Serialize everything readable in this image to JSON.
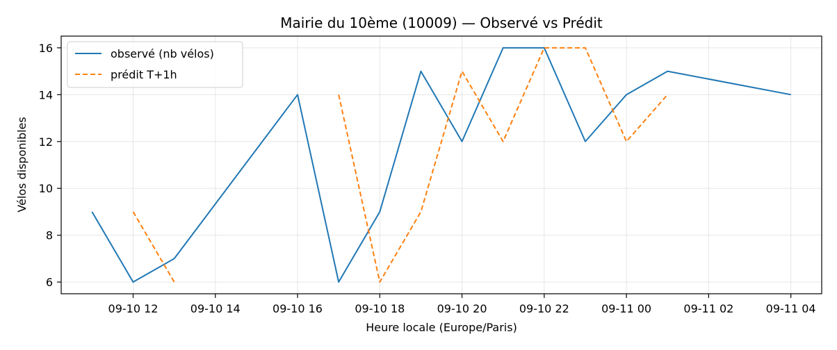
{
  "chart_data": {
    "type": "line",
    "title": "Mairie du 10ème (10009) — Observé vs Prédit",
    "xlabel": "Heure locale (Europe/Paris)",
    "ylabel": "Vélos disponibles",
    "xlim": [
      "2025-09-10 10:15",
      "2025-09-11 04:45"
    ],
    "ylim": [
      5.5,
      16.5
    ],
    "x_ticks": [
      "09-10 12",
      "09-10 14",
      "09-10 16",
      "09-10 18",
      "09-10 20",
      "09-10 22",
      "09-11 00",
      "09-11 02",
      "09-11 04"
    ],
    "y_ticks": [
      6,
      8,
      10,
      12,
      14,
      16
    ],
    "grid": true,
    "legend_position": "upper left",
    "series": [
      {
        "name": "observé (nb vélos)",
        "color": "#1f77b4",
        "style": "solid",
        "points": [
          {
            "x": "2025-09-10 11:00",
            "y": 9
          },
          {
            "x": "2025-09-10 12:00",
            "y": 6
          },
          {
            "x": "2025-09-10 13:00",
            "y": 7
          },
          {
            "x": "2025-09-10 16:00",
            "y": 14
          },
          {
            "x": "2025-09-10 17:00",
            "y": 6
          },
          {
            "x": "2025-09-10 18:00",
            "y": 9
          },
          {
            "x": "2025-09-10 19:00",
            "y": 15
          },
          {
            "x": "2025-09-10 20:00",
            "y": 12
          },
          {
            "x": "2025-09-10 21:00",
            "y": 16
          },
          {
            "x": "2025-09-10 22:00",
            "y": 16
          },
          {
            "x": "2025-09-10 23:00",
            "y": 12
          },
          {
            "x": "2025-09-11 00:00",
            "y": 14
          },
          {
            "x": "2025-09-11 01:00",
            "y": 15
          },
          {
            "x": "2025-09-11 04:00",
            "y": 14
          }
        ]
      },
      {
        "name": "prédit T+1h",
        "color": "#ff7f0e",
        "style": "dashed",
        "segments": [
          [
            {
              "x": "2025-09-10 12:00",
              "y": 9
            },
            {
              "x": "2025-09-10 13:00",
              "y": 6
            }
          ],
          [
            {
              "x": "2025-09-10 17:00",
              "y": 14
            },
            {
              "x": "2025-09-10 18:00",
              "y": 6
            },
            {
              "x": "2025-09-10 19:00",
              "y": 9
            },
            {
              "x": "2025-09-10 20:00",
              "y": 15
            },
            {
              "x": "2025-09-10 21:00",
              "y": 12
            },
            {
              "x": "2025-09-10 22:00",
              "y": 16
            },
            {
              "x": "2025-09-10 23:00",
              "y": 16
            },
            {
              "x": "2025-09-11 00:00",
              "y": 12
            },
            {
              "x": "2025-09-11 01:00",
              "y": 14
            }
          ]
        ]
      }
    ]
  }
}
